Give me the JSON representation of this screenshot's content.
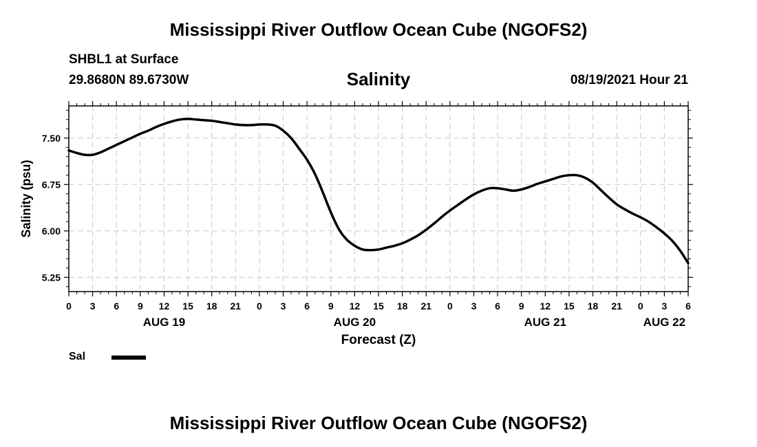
{
  "header": {
    "title": "Mississippi River Outflow Ocean Cube (NGOFS2)",
    "station": "SHBL1 at Surface",
    "coordinates": "29.8680N  89.6730W",
    "variable": "Salinity",
    "timestamp": "08/19/2021 Hour 21"
  },
  "footer": {
    "title": "Mississippi River Outflow Ocean Cube (NGOFS2)"
  },
  "legend": {
    "label": "Sal",
    "color": "#000000"
  },
  "chart_data": {
    "type": "line",
    "title": "Salinity",
    "xlabel": "Forecast (Z)",
    "ylabel": "Salinity (psu)",
    "xlim": [
      0,
      78
    ],
    "ylim": [
      5.02,
      8.02
    ],
    "grid": true,
    "yticks": [
      {
        "value": 5.25,
        "label": "5.25"
      },
      {
        "value": 6.0,
        "label": "6.00"
      },
      {
        "value": 6.75,
        "label": "6.75"
      },
      {
        "value": 7.5,
        "label": "7.50"
      }
    ],
    "xticks": [
      {
        "value": 0,
        "label": "0"
      },
      {
        "value": 3,
        "label": "3"
      },
      {
        "value": 6,
        "label": "6"
      },
      {
        "value": 9,
        "label": "9"
      },
      {
        "value": 12,
        "label": "12"
      },
      {
        "value": 15,
        "label": "15"
      },
      {
        "value": 18,
        "label": "18"
      },
      {
        "value": 21,
        "label": "21"
      },
      {
        "value": 24,
        "label": "0"
      },
      {
        "value": 27,
        "label": "3"
      },
      {
        "value": 30,
        "label": "6"
      },
      {
        "value": 33,
        "label": "9"
      },
      {
        "value": 36,
        "label": "12"
      },
      {
        "value": 39,
        "label": "15"
      },
      {
        "value": 42,
        "label": "18"
      },
      {
        "value": 45,
        "label": "21"
      },
      {
        "value": 48,
        "label": "0"
      },
      {
        "value": 51,
        "label": "3"
      },
      {
        "value": 54,
        "label": "6"
      },
      {
        "value": 57,
        "label": "9"
      },
      {
        "value": 60,
        "label": "12"
      },
      {
        "value": 63,
        "label": "15"
      },
      {
        "value": 66,
        "label": "18"
      },
      {
        "value": 69,
        "label": "21"
      },
      {
        "value": 72,
        "label": "0"
      },
      {
        "value": 75,
        "label": "3"
      },
      {
        "value": 78,
        "label": "6"
      }
    ],
    "date_labels": [
      {
        "value": 12,
        "label": "AUG 19"
      },
      {
        "value": 36,
        "label": "AUG 20"
      },
      {
        "value": 60,
        "label": "AUG 21"
      },
      {
        "value": 75,
        "label": "AUG 22"
      }
    ],
    "series": [
      {
        "name": "Sal",
        "x": [
          0,
          1,
          2,
          3,
          4,
          5,
          6,
          7,
          8,
          9,
          10,
          11,
          12,
          13,
          14,
          15,
          16,
          17,
          18,
          19,
          20,
          21,
          22,
          23,
          24,
          25,
          26,
          27,
          28,
          29,
          30,
          31,
          32,
          33,
          34,
          35,
          36,
          37,
          38,
          39,
          40,
          41,
          42,
          43,
          44,
          45,
          46,
          47,
          48,
          49,
          50,
          51,
          52,
          53,
          54,
          55,
          56,
          57,
          58,
          59,
          60,
          61,
          62,
          63,
          64,
          65,
          66,
          67,
          68,
          69,
          70,
          71,
          72,
          73,
          74,
          75,
          76,
          77,
          78
        ],
        "values": [
          7.3,
          7.26,
          7.23,
          7.23,
          7.27,
          7.33,
          7.39,
          7.45,
          7.51,
          7.57,
          7.62,
          7.68,
          7.73,
          7.77,
          7.8,
          7.81,
          7.8,
          7.79,
          7.78,
          7.76,
          7.74,
          7.72,
          7.71,
          7.71,
          7.72,
          7.72,
          7.7,
          7.62,
          7.5,
          7.33,
          7.15,
          6.92,
          6.62,
          6.3,
          6.03,
          5.86,
          5.76,
          5.7,
          5.69,
          5.7,
          5.73,
          5.76,
          5.8,
          5.86,
          5.93,
          6.02,
          6.12,
          6.23,
          6.33,
          6.42,
          6.51,
          6.59,
          6.65,
          6.69,
          6.69,
          6.67,
          6.65,
          6.67,
          6.71,
          6.76,
          6.8,
          6.84,
          6.88,
          6.9,
          6.9,
          6.86,
          6.78,
          6.66,
          6.54,
          6.43,
          6.35,
          6.28,
          6.22,
          6.15,
          6.06,
          5.96,
          5.84,
          5.68,
          5.48
        ]
      }
    ]
  }
}
